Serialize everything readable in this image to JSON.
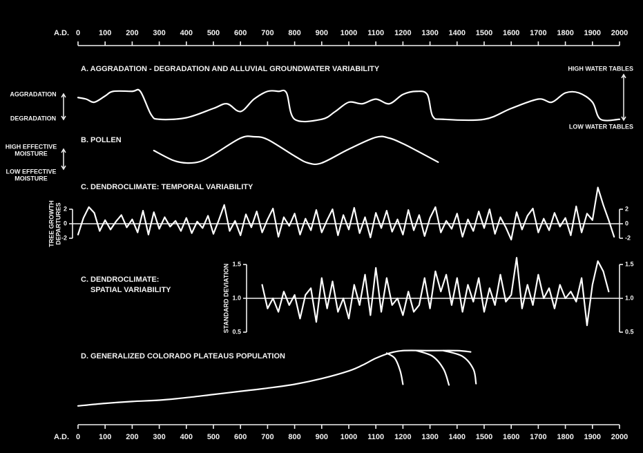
{
  "time_axis": {
    "label": "A.D.",
    "xlim": [
      0,
      2000
    ],
    "xticks": [
      0,
      100,
      200,
      300,
      400,
      500,
      600,
      700,
      800,
      900,
      1000,
      1100,
      1200,
      1300,
      1400,
      1500,
      1600,
      1700,
      1800,
      1900,
      2000
    ]
  },
  "chart_data": [
    {
      "type": "line",
      "smooth": true,
      "title": "A. AGGRADATION - DEGRADATION AND ALLUVIAL GROUNDWATER VARIABILITY",
      "left_labels": [
        "AGGRADATION",
        "DEGRADATION"
      ],
      "right_labels": [
        "HIGH WATER TABLES",
        "LOW WATER TABLES"
      ],
      "ylim": [
        0,
        1
      ],
      "series": [
        {
          "color": "#ffffff",
          "x": [
            0,
            30,
            60,
            100,
            130,
            200,
            230,
            270,
            300,
            400,
            500,
            550,
            600,
            650,
            700,
            740,
            770,
            800,
            900,
            950,
            1000,
            1050,
            1100,
            1150,
            1200,
            1250,
            1290,
            1310,
            1350,
            1500,
            1600,
            1700,
            1750,
            1800,
            1850,
            1900,
            1930,
            2000
          ],
          "values": [
            0.75,
            0.7,
            0.6,
            0.8,
            0.95,
            0.95,
            0.95,
            0.2,
            0.05,
            0.1,
            0.4,
            0.55,
            0.3,
            0.7,
            0.95,
            0.95,
            0.9,
            0.05,
            0.05,
            0.3,
            0.6,
            0.55,
            0.7,
            0.55,
            0.85,
            0.95,
            0.85,
            0.15,
            0.05,
            0.05,
            0.4,
            0.7,
            0.6,
            0.9,
            0.9,
            0.6,
            0.05,
            0.05
          ]
        }
      ]
    },
    {
      "type": "line",
      "smooth": true,
      "title": "B. POLLEN",
      "left_labels": [
        [
          "HIGH EFFECTIVE",
          "MOISTURE"
        ],
        [
          "LOW EFFECTIVE",
          "MOISTURE"
        ]
      ],
      "ylim": [
        0,
        1
      ],
      "series": [
        {
          "color": "#ffffff",
          "x": [
            280,
            350,
            400,
            450,
            500,
            600,
            650,
            700,
            800,
            850,
            900,
            1000,
            1100,
            1150,
            1200,
            1250,
            1330
          ],
          "values": [
            0.5,
            0.15,
            0.05,
            0.1,
            0.35,
            0.95,
            1,
            0.9,
            0.3,
            0.05,
            0.05,
            0.55,
            0.98,
            0.95,
            0.75,
            0.5,
            0.08
          ]
        }
      ]
    },
    {
      "type": "line",
      "smooth": false,
      "title": "C. DENDROCLIMATE:  TEMPORAL VARIABILITY",
      "y_label": [
        "TREE GROWTH",
        "DEPARTURES"
      ],
      "ylim": [
        -2,
        2
      ],
      "yticks": [
        2,
        0,
        -2
      ],
      "baseline": 0,
      "right_axis": true,
      "series": [
        {
          "color": "#ffffff",
          "x": [
            0,
            20,
            40,
            60,
            80,
            100,
            120,
            140,
            160,
            180,
            200,
            220,
            240,
            260,
            280,
            300,
            320,
            340,
            360,
            380,
            400,
            420,
            440,
            460,
            480,
            500,
            520,
            540,
            560,
            580,
            600,
            620,
            640,
            660,
            680,
            700,
            720,
            740,
            760,
            780,
            800,
            820,
            840,
            860,
            880,
            900,
            920,
            940,
            960,
            980,
            1000,
            1020,
            1040,
            1060,
            1080,
            1100,
            1120,
            1140,
            1160,
            1180,
            1200,
            1220,
            1240,
            1260,
            1280,
            1300,
            1320,
            1340,
            1360,
            1380,
            1400,
            1420,
            1440,
            1460,
            1480,
            1500,
            1520,
            1540,
            1560,
            1580,
            1600,
            1620,
            1640,
            1660,
            1680,
            1700,
            1720,
            1740,
            1760,
            1780,
            1800,
            1820,
            1840,
            1860,
            1880,
            1900,
            1920,
            1940,
            1960,
            1980
          ],
          "values": [
            -1.5,
            0.8,
            2.3,
            1.5,
            -1,
            0.5,
            -0.8,
            0.3,
            1.2,
            -0.5,
            0.6,
            -1.2,
            1.8,
            -1.5,
            1.6,
            -0.7,
            0.9,
            -0.4,
            0.4,
            -1,
            0.8,
            -1.3,
            0.3,
            -0.6,
            1.1,
            -1.4,
            0.5,
            2.6,
            -1,
            0.4,
            -1.6,
            1.3,
            -0.5,
            1.7,
            -1.2,
            0.6,
            2.1,
            -1.8,
            0.9,
            -0.3,
            1.4,
            -1.5,
            0.7,
            -0.9,
            1.9,
            -1.2,
            0.5,
            2,
            -1.6,
            1.2,
            -0.8,
            2.2,
            -1.3,
            0.9,
            -1.9,
            1.5,
            -0.6,
            1.8,
            -1.1,
            0.6,
            -1.5,
            1.9,
            -0.9,
            1.2,
            -1.7,
            0.8,
            2.3,
            -1.2,
            0.4,
            -0.7,
            1.4,
            -1.8,
            0.6,
            -1,
            1.7,
            -0.6,
            2,
            -1.4,
            0.9,
            -0.5,
            -2.2,
            1.6,
            -0.8,
            1.1,
            2.1,
            -1.2,
            0.7,
            -0.9,
            1.5,
            -0.4,
            0.8,
            -1.6,
            2.4,
            -1.2,
            1.4,
            0.5,
            5,
            2.6,
            0.5,
            -1.8
          ]
        }
      ]
    },
    {
      "type": "line",
      "smooth": false,
      "title": [
        "C. DENDROCLIMATE:",
        "SPATIAL VARIABILITY"
      ],
      "y_label": [
        "STANDARD DEVIATION"
      ],
      "ylim": [
        0.5,
        1.5
      ],
      "yticks": [
        1.5,
        {
          "value": 1,
          "label": "1.0"
        },
        0.5
      ],
      "baseline": 1,
      "right_axis": true,
      "series": [
        {
          "color": "#ffffff",
          "x": [
            680,
            700,
            720,
            740,
            760,
            780,
            800,
            820,
            840,
            860,
            880,
            900,
            920,
            940,
            960,
            980,
            1000,
            1020,
            1040,
            1060,
            1080,
            1100,
            1120,
            1140,
            1160,
            1180,
            1200,
            1220,
            1240,
            1260,
            1280,
            1300,
            1320,
            1340,
            1360,
            1380,
            1400,
            1420,
            1440,
            1460,
            1480,
            1500,
            1520,
            1540,
            1560,
            1580,
            1600,
            1620,
            1640,
            1660,
            1680,
            1700,
            1720,
            1740,
            1760,
            1780,
            1800,
            1820,
            1840,
            1860,
            1880,
            1900,
            1920,
            1940,
            1960
          ],
          "values": [
            1.2,
            0.85,
            1.0,
            0.8,
            1.1,
            0.9,
            1.05,
            0.7,
            1.05,
            1.15,
            0.65,
            1.3,
            0.85,
            1.25,
            0.8,
            1.0,
            0.7,
            1.2,
            0.9,
            1.35,
            0.75,
            1.45,
            0.8,
            1.3,
            0.9,
            1.0,
            0.75,
            1.1,
            0.8,
            0.9,
            1.3,
            0.85,
            1.4,
            1.1,
            1.35,
            0.9,
            1.3,
            0.8,
            1.2,
            0.95,
            1.3,
            0.8,
            1.15,
            0.9,
            1.35,
            0.95,
            1.05,
            1.6,
            0.85,
            1.2,
            0.9,
            1.35,
            1.0,
            1.15,
            0.85,
            1.2,
            1.0,
            1.1,
            0.95,
            1.3,
            0.6,
            1.2,
            1.55,
            1.4,
            1.1
          ]
        }
      ]
    },
    {
      "type": "line",
      "smooth": true,
      "title": "D. GENERALIZED COLORADO PLATEAUS POPULATION",
      "ylim": [
        0,
        1
      ],
      "series": [
        {
          "color": "#ffffff",
          "x": [
            0,
            100,
            200,
            300,
            400,
            500,
            600,
            700,
            800,
            900,
            1000,
            1050,
            1100,
            1150,
            1200,
            1300,
            1400,
            1450
          ],
          "values": [
            0.1,
            0.14,
            0.17,
            0.19,
            0.23,
            0.28,
            0.33,
            0.38,
            0.44,
            0.53,
            0.65,
            0.74,
            0.85,
            0.93,
            0.97,
            0.97,
            0.97,
            0.95
          ]
        },
        {
          "color": "#ffffff",
          "x": [
            1140,
            1170,
            1190,
            1200
          ],
          "values": [
            0.93,
            0.85,
            0.65,
            0.44
          ]
        },
        {
          "color": "#ffffff",
          "x": [
            1250,
            1310,
            1350,
            1370
          ],
          "values": [
            0.97,
            0.88,
            0.68,
            0.43
          ]
        },
        {
          "color": "#ffffff",
          "x": [
            1350,
            1420,
            1460,
            1470
          ],
          "values": [
            0.97,
            0.88,
            0.68,
            0.45
          ]
        }
      ]
    }
  ]
}
